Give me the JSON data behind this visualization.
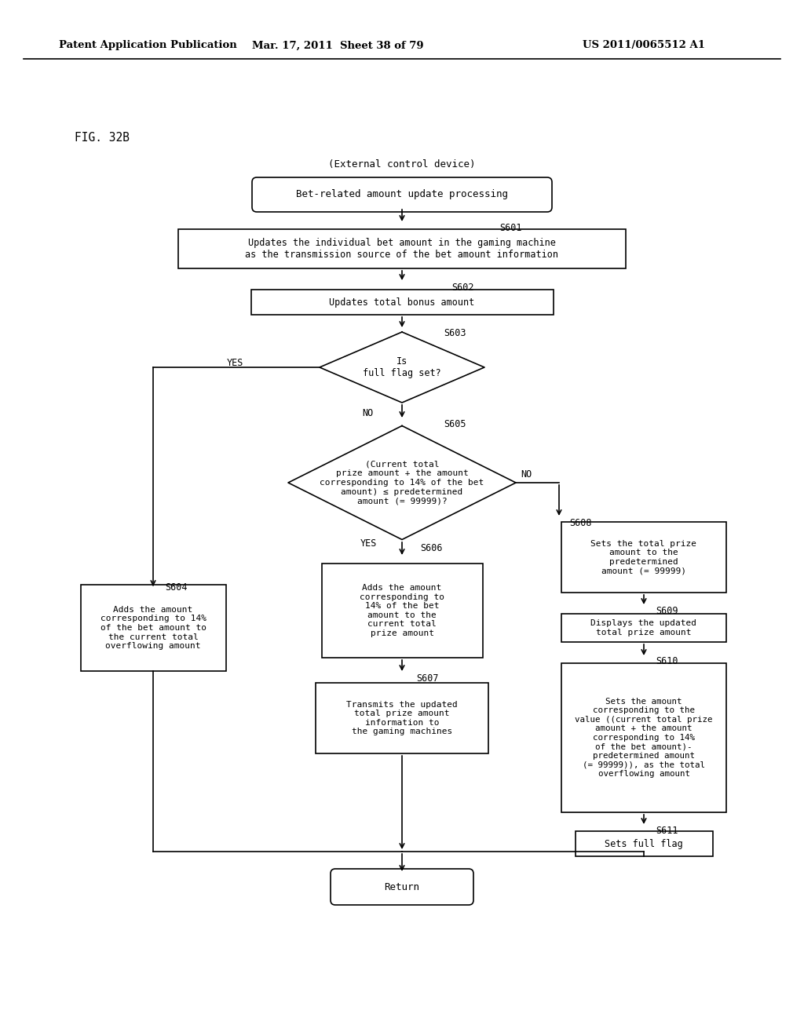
{
  "title_left": "Patent Application Publication",
  "title_mid": "Mar. 17, 2011  Sheet 38 of 79",
  "title_right": "US 2011/0065512 A1",
  "fig_label": "FIG. 32B",
  "ext_label": "(External control device)",
  "bg_color": "#ffffff",
  "start_text": "Bet-related amount update processing",
  "S601_text": "Updates the individual bet amount in the gaming machine\nas the transmission source of the bet amount information",
  "S602_text": "Updates total bonus amount",
  "S603_text": "Is\nfull flag set?",
  "S605_text": "(Current total\nprize amount + the amount\ncorresponding to 14% of the bet\namount) ≤ predetermined\namount (= 99999)?",
  "S604_text": "Adds the amount\ncorresponding to 14%\nof the bet amount to\nthe current total\noverflowing amount",
  "S606_text": "Adds the amount\ncorresponding to\n14% of the bet\namount to the\ncurrent total\nprize amount",
  "S607_text": "Transmits the updated\ntotal prize amount\ninformation to\nthe gaming machines",
  "S608_text": "Sets the total prize\namount to the\npredetermined\namount (= 99999)",
  "S609_text": "Displays the updated\ntotal prize amount",
  "S610_text": "Sets the amount\ncorresponding to the\nvalue ((current total prize\namount + the amount\ncorresponding to 14%\nof the bet amount)-\npredetermined amount\n(= 99999)), as the total\noverflowing amount",
  "S611_text": "Sets full flag",
  "end_text": "Return"
}
